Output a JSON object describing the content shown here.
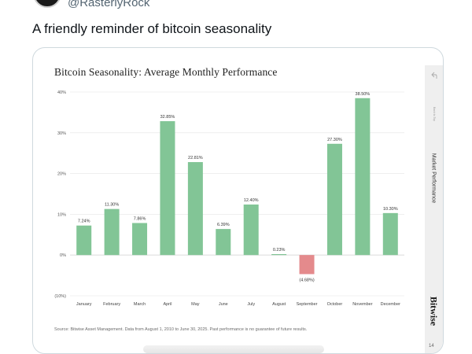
{
  "tweet": {
    "handle": "@RasterlyRock",
    "text": "A friendly reminder of bitcoin seasonality"
  },
  "card": {
    "source_note": "Source: Bitwise Asset Management. Data from August 1, 2010 to June 30, 2025. Past performance is no guarantee of future results.",
    "sidebar": {
      "back_label": "Back to Top",
      "section_label": "Market Performance",
      "brand": "Bitwise",
      "page_number": "14"
    }
  },
  "colors": {
    "positive": "#82c596",
    "negative": "#e48a8c",
    "gridline": "#e6e6e6"
  },
  "chart_data": {
    "type": "bar",
    "title": "Bitcoin Seasonality: Average Monthly Performance",
    "xlabel": "",
    "ylabel": "",
    "ylim": [
      -10,
      40
    ],
    "yticks": [
      -10,
      0,
      10,
      20,
      30,
      40
    ],
    "ytick_labels": [
      "(10%)",
      "0%",
      "10%",
      "20%",
      "30%",
      "40%"
    ],
    "grid": true,
    "categories": [
      "January",
      "February",
      "March",
      "April",
      "May",
      "June",
      "July",
      "August",
      "September",
      "October",
      "November",
      "December"
    ],
    "values": [
      7.24,
      11.3,
      7.86,
      32.85,
      22.81,
      6.39,
      12.4,
      0.23,
      -4.68,
      27.3,
      38.5,
      10.3
    ],
    "data_labels": [
      "7.24%",
      "11.30%",
      "7.86%",
      "32.85%",
      "22.81%",
      "6.39%",
      "12.40%",
      "0.23%",
      "(4.68%)",
      "27.30%",
      "38.50%",
      "10.30%"
    ]
  }
}
